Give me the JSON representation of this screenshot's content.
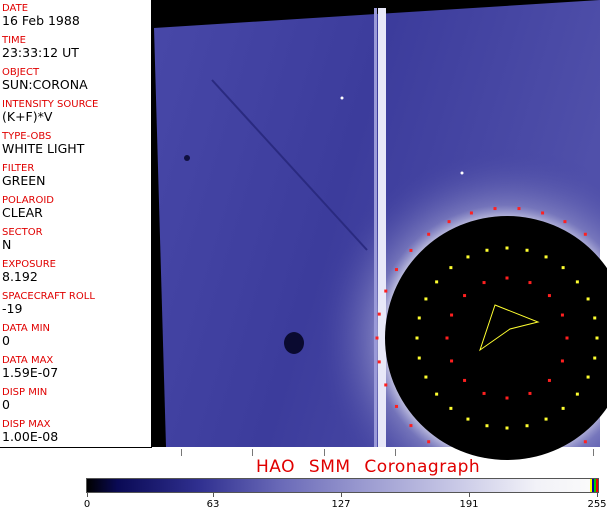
{
  "header_fields": [
    {
      "label": "DATE",
      "value": "16 Feb 1988"
    },
    {
      "label": "TIME",
      "value": "23:33:12 UT"
    },
    {
      "label": "OBJECT",
      "value": "SUN:CORONA"
    },
    {
      "label": "INTENSITY SOURCE",
      "value": "(K+F)*V"
    },
    {
      "label": "TYPE-OBS",
      "value": "WHITE LIGHT"
    },
    {
      "label": "FILTER",
      "value": "GREEN"
    },
    {
      "label": "POLAROID",
      "value": "CLEAR"
    },
    {
      "label": "SECTOR",
      "value": "N"
    },
    {
      "label": "EXPOSURE",
      "value": "8.192"
    },
    {
      "label": "SPACECRAFT ROLL",
      "value": "-19"
    },
    {
      "label": "DATA MIN",
      "value": "0"
    },
    {
      "label": "DATA MAX",
      "value": "1.59E-07"
    },
    {
      "label": "DISP MIN",
      "value": "0"
    },
    {
      "label": "DISP MAX",
      "value": "1.00E-08"
    }
  ],
  "title": "HAO SMM Coronagraph",
  "colorbar": {
    "ticks": [
      "0",
      "63",
      "127",
      "191",
      "255"
    ],
    "min": 0,
    "max": 255
  },
  "colors": {
    "label": "#e00000",
    "field": "#3a3a9a",
    "marker_red": "#ff2020",
    "marker_yellow": "#ffff30"
  }
}
